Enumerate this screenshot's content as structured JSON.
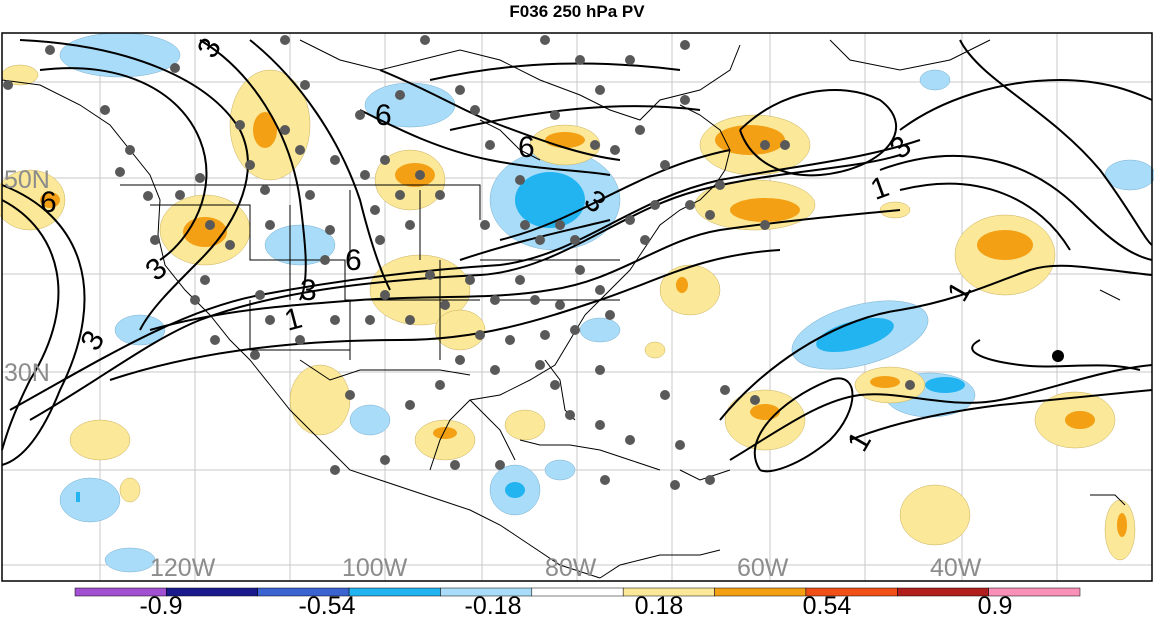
{
  "title": "F036 250 hPa PV",
  "lat_labels": [
    "50N",
    "30N"
  ],
  "lon_labels": [
    "120W",
    "100W",
    "80W",
    "60W",
    "40W"
  ],
  "contour_labels": [
    "3",
    "6",
    "6",
    "6",
    "3",
    "1",
    "3",
    "6",
    "3",
    "3",
    "1",
    "3",
    "1",
    "1"
  ],
  "colorbar": {
    "tick_labels": [
      "-0.9",
      "-0.54",
      "-0.18",
      "0.18",
      "0.54",
      "0.9"
    ],
    "colors": [
      "#a050d0",
      "#1a1a8c",
      "#3a62d0",
      "#22b4f0",
      "#a8dcf8",
      "#ffffff",
      "#fbe898",
      "#f4a014",
      "#f05018",
      "#b01e1e",
      "#f890b8"
    ]
  },
  "colors": {
    "positive_light": "#fbe898",
    "positive_mid": "#f4a014",
    "negative_light": "#a8dcf8",
    "negative_mid": "#22b4f0",
    "lat_lon_label": "#8c8c8c",
    "station_dot": "#595959"
  }
}
